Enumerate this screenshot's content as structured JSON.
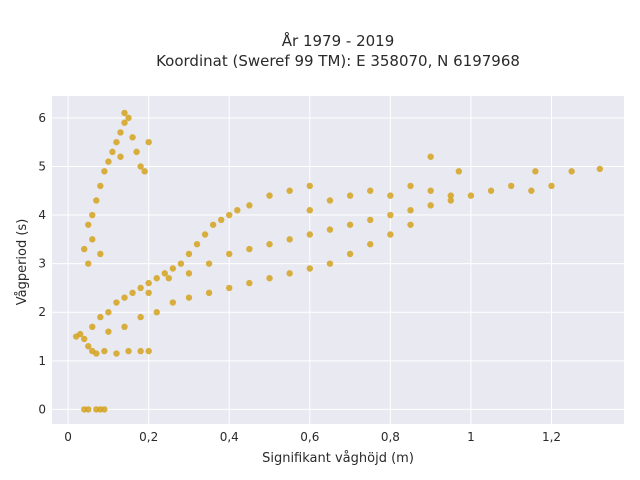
{
  "chart_data": {
    "type": "scatter",
    "title_line1": "År 1979 - 2019",
    "title_line2": "Koordinat (Sweref 99 TM): E 358070, N 6197968",
    "xlabel": "Signifikant våghöjd (m)",
    "ylabel": "Vågperiod (s)",
    "xlim": [
      -0.04,
      1.38
    ],
    "ylim": [
      -0.3,
      6.45
    ],
    "xticks": [
      0,
      0.2,
      0.4,
      0.6,
      0.8,
      1,
      1.2
    ],
    "xtick_labels": [
      "0",
      "0,2",
      "0,4",
      "0,6",
      "0,8",
      "1",
      "1,2"
    ],
    "yticks": [
      0,
      1,
      2,
      3,
      4,
      5,
      6
    ],
    "ytick_labels": [
      "0",
      "1",
      "2",
      "3",
      "4",
      "5",
      "6"
    ],
    "grid": true,
    "colors": {
      "marker": "#D4A31E",
      "plot_bg": "#E9E9F1",
      "grid": "#ffffff"
    },
    "points": [
      [
        0.04,
        0.0
      ],
      [
        0.05,
        0.0
      ],
      [
        0.07,
        0.0
      ],
      [
        0.08,
        0.0
      ],
      [
        0.09,
        0.0
      ],
      [
        0.02,
        1.5
      ],
      [
        0.03,
        1.55
      ],
      [
        0.04,
        1.45
      ],
      [
        0.05,
        1.3
      ],
      [
        0.06,
        1.2
      ],
      [
        0.07,
        1.15
      ],
      [
        0.09,
        1.2
      ],
      [
        0.12,
        1.15
      ],
      [
        0.15,
        1.2
      ],
      [
        0.18,
        1.2
      ],
      [
        0.2,
        1.2
      ],
      [
        0.06,
        1.7
      ],
      [
        0.08,
        1.9
      ],
      [
        0.1,
        2.0
      ],
      [
        0.12,
        2.2
      ],
      [
        0.14,
        2.3
      ],
      [
        0.16,
        2.4
      ],
      [
        0.18,
        2.5
      ],
      [
        0.2,
        2.6
      ],
      [
        0.22,
        2.7
      ],
      [
        0.24,
        2.8
      ],
      [
        0.26,
        2.9
      ],
      [
        0.28,
        3.0
      ],
      [
        0.3,
        3.2
      ],
      [
        0.32,
        3.4
      ],
      [
        0.34,
        3.6
      ],
      [
        0.36,
        3.8
      ],
      [
        0.38,
        3.9
      ],
      [
        0.4,
        4.0
      ],
      [
        0.42,
        4.1
      ],
      [
        0.45,
        4.2
      ],
      [
        0.5,
        4.4
      ],
      [
        0.55,
        4.5
      ],
      [
        0.6,
        4.6
      ],
      [
        0.1,
        1.6
      ],
      [
        0.14,
        1.7
      ],
      [
        0.18,
        1.9
      ],
      [
        0.22,
        2.0
      ],
      [
        0.26,
        2.2
      ],
      [
        0.3,
        2.3
      ],
      [
        0.35,
        2.4
      ],
      [
        0.4,
        2.5
      ],
      [
        0.45,
        2.6
      ],
      [
        0.5,
        2.7
      ],
      [
        0.55,
        2.8
      ],
      [
        0.6,
        2.9
      ],
      [
        0.65,
        3.0
      ],
      [
        0.7,
        3.2
      ],
      [
        0.75,
        3.4
      ],
      [
        0.8,
        3.6
      ],
      [
        0.85,
        3.8
      ],
      [
        0.2,
        2.4
      ],
      [
        0.25,
        2.7
      ],
      [
        0.3,
        2.8
      ],
      [
        0.35,
        3.0
      ],
      [
        0.4,
        3.2
      ],
      [
        0.45,
        3.3
      ],
      [
        0.5,
        3.4
      ],
      [
        0.55,
        3.5
      ],
      [
        0.6,
        3.6
      ],
      [
        0.65,
        3.7
      ],
      [
        0.7,
        3.8
      ],
      [
        0.75,
        3.9
      ],
      [
        0.8,
        4.0
      ],
      [
        0.85,
        4.1
      ],
      [
        0.9,
        4.2
      ],
      [
        0.95,
        4.3
      ],
      [
        0.6,
        4.1
      ],
      [
        0.65,
        4.3
      ],
      [
        0.7,
        4.4
      ],
      [
        0.75,
        4.5
      ],
      [
        0.8,
        4.4
      ],
      [
        0.85,
        4.6
      ],
      [
        0.9,
        4.5
      ],
      [
        0.95,
        4.4
      ],
      [
        1.0,
        4.4
      ],
      [
        1.05,
        4.5
      ],
      [
        1.1,
        4.6
      ],
      [
        1.15,
        4.5
      ],
      [
        1.2,
        4.6
      ],
      [
        1.25,
        4.9
      ],
      [
        1.32,
        4.95
      ],
      [
        1.16,
        4.9
      ],
      [
        0.9,
        5.2
      ],
      [
        0.97,
        4.9
      ],
      [
        0.05,
        3.8
      ],
      [
        0.06,
        4.0
      ],
      [
        0.07,
        4.3
      ],
      [
        0.08,
        4.6
      ],
      [
        0.09,
        4.9
      ],
      [
        0.1,
        5.1
      ],
      [
        0.11,
        5.3
      ],
      [
        0.12,
        5.5
      ],
      [
        0.13,
        5.7
      ],
      [
        0.14,
        5.9
      ],
      [
        0.15,
        6.0
      ],
      [
        0.14,
        6.1
      ],
      [
        0.13,
        5.2
      ],
      [
        0.16,
        5.6
      ],
      [
        0.17,
        5.3
      ],
      [
        0.18,
        5.0
      ],
      [
        0.19,
        4.9
      ],
      [
        0.2,
        5.5
      ],
      [
        0.04,
        3.3
      ],
      [
        0.05,
        3.0
      ],
      [
        0.06,
        3.5
      ],
      [
        0.08,
        3.2
      ]
    ]
  }
}
